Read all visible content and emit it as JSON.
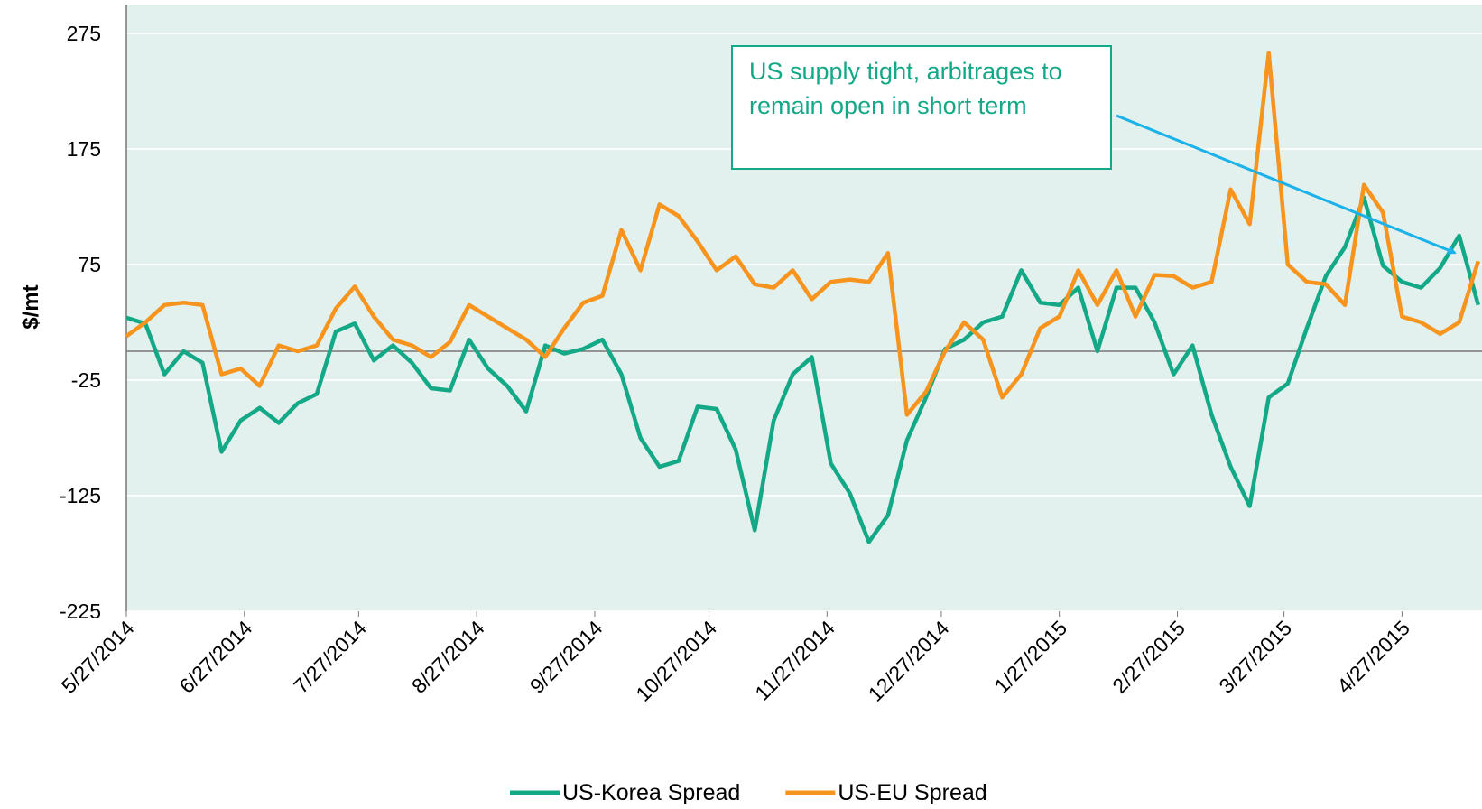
{
  "chart_data": {
    "type": "line",
    "y_label": "$/mt",
    "annotation": "US supply tight, arbitrages to remain open in short term",
    "x": [
      "5/27/2014",
      "6/1/2014",
      "6/6/2014",
      "6/11/2014",
      "6/16/2014",
      "6/21/2014",
      "6/26/2014",
      "7/1/2014",
      "7/6/2014",
      "7/11/2014",
      "7/16/2014",
      "7/21/2014",
      "7/26/2014",
      "7/31/2014",
      "8/5/2014",
      "8/10/2014",
      "8/15/2014",
      "8/20/2014",
      "8/25/2014",
      "8/30/2014",
      "9/4/2014",
      "9/9/2014",
      "9/14/2014",
      "9/19/2014",
      "9/24/2014",
      "9/29/2014",
      "10/4/2014",
      "10/9/2014",
      "10/14/2014",
      "10/19/2014",
      "10/24/2014",
      "10/29/2014",
      "11/3/2014",
      "11/8/2014",
      "11/13/2014",
      "11/18/2014",
      "11/23/2014",
      "11/28/2014",
      "12/3/2014",
      "12/8/2014",
      "12/13/2014",
      "12/18/2014",
      "12/23/2014",
      "12/28/2014",
      "1/2/2015",
      "1/7/2015",
      "1/12/2015",
      "1/17/2015",
      "1/22/2015",
      "1/27/2015",
      "2/1/2015",
      "2/6/2015",
      "2/11/2015",
      "2/16/2015",
      "2/21/2015",
      "2/26/2015",
      "3/3/2015",
      "3/8/2015",
      "3/13/2015",
      "3/18/2015",
      "3/23/2015",
      "3/28/2015",
      "4/2/2015",
      "4/7/2015",
      "4/12/2015",
      "4/17/2015",
      "4/22/2015",
      "4/27/2015",
      "5/2/2015",
      "5/7/2015",
      "5/12/2015",
      "5/17/2015"
    ],
    "series": [
      {
        "name": "US-Korea Spread",
        "color": "#13a886",
        "values": [
          29,
          24,
          -20,
          0,
          -10,
          -87,
          -60,
          -49,
          -62,
          -45,
          -37,
          17,
          24,
          -8,
          5,
          -10,
          -32,
          -34,
          10,
          -15,
          -30,
          -52,
          5,
          -2,
          2,
          10,
          -20,
          -75,
          -100,
          -95,
          -48,
          -50,
          -85,
          -155,
          -60,
          -20,
          -5,
          -97,
          -123,
          -165,
          -142,
          -77,
          -40,
          2,
          10,
          25,
          30,
          70,
          42,
          40,
          55,
          0,
          55,
          55,
          25,
          -20,
          5,
          -55,
          -100,
          -134,
          -40,
          -28,
          20,
          65,
          90,
          133,
          74,
          60,
          55,
          72,
          100,
          40
        ]
      },
      {
        "name": "US-EU Spread",
        "color": "#f7941d",
        "values": [
          13,
          25,
          40,
          42,
          40,
          -20,
          -15,
          -30,
          5,
          0,
          5,
          37,
          56,
          30,
          10,
          5,
          -5,
          8,
          40,
          30,
          20,
          10,
          -5,
          20,
          42,
          48,
          105,
          70,
          127,
          117,
          95,
          70,
          82,
          58,
          55,
          70,
          45,
          60,
          62,
          60,
          85,
          -55,
          -35,
          0,
          25,
          10,
          -40,
          -20,
          20,
          30,
          70,
          40,
          70,
          30,
          66,
          65,
          55,
          60,
          140,
          110,
          258,
          75,
          60,
          58,
          40,
          144,
          120,
          30,
          25,
          15,
          25,
          78
        ]
      }
    ],
    "xlim": [
      "5/27/2014",
      "5/18/2015"
    ],
    "xticks": [
      "5/27/2014",
      "6/27/2014",
      "7/27/2014",
      "8/27/2014",
      "9/27/2014",
      "10/27/2014",
      "11/27/2014",
      "12/27/2014",
      "1/27/2015",
      "2/27/2015",
      "3/27/2015",
      "4/27/2015"
    ],
    "ylim": [
      -225,
      300
    ],
    "yticks": [
      275,
      175,
      75,
      -25,
      -125,
      -225
    ],
    "grid": true,
    "background": "#e2f0ee",
    "legend": "bottom"
  }
}
